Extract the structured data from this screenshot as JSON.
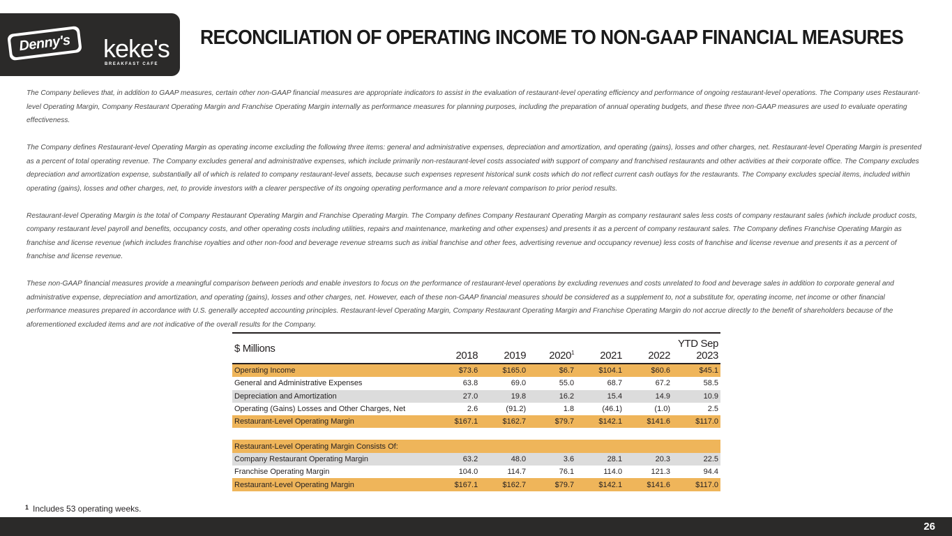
{
  "header": {
    "title": "RECONCILIATION OF OPERATING INCOME TO NON-GAAP FINANCIAL MEASURES",
    "logo_dennys": "Denny's",
    "logo_kekes": "keke's",
    "logo_kekes_sub": "BREAKFAST CAFE"
  },
  "paragraphs": [
    "The Company believes that, in addition to GAAP measures, certain other non-GAAP financial measures are appropriate indicators to assist in the evaluation of restaurant-level operating efficiency and performance of ongoing restaurant-level operations. The Company uses Restaurant-level Operating Margin, Company Restaurant Operating Margin and Franchise Operating Margin internally as performance measures for planning purposes, including the preparation of annual operating budgets, and these three non-GAAP measures are used to evaluate operating effectiveness.",
    "The Company defines Restaurant-level Operating Margin as operating income excluding the following three items: general and administrative expenses, depreciation and amortization, and operating (gains), losses and other charges, net. Restaurant-level Operating Margin is presented as a percent of total operating revenue. The Company excludes general and administrative expenses, which include primarily non-restaurant-level costs associated with support of company and franchised restaurants and other activities at their corporate office. The Company excludes depreciation and amortization expense, substantially all of which is related to company restaurant-level assets, because such expenses represent historical sunk costs which do not reflect current cash outlays for the restaurants. The Company excludes special items, included within operating (gains), losses and other charges, net, to provide investors with a clearer perspective of its ongoing operating performance and a more relevant comparison to prior period results.",
    "Restaurant-level Operating Margin is the total of Company Restaurant Operating Margin and Franchise Operating Margin. The Company defines Company Restaurant Operating Margin as company restaurant sales less costs of company restaurant sales (which include product costs, company restaurant level payroll and benefits, occupancy costs, and other operating costs including utilities, repairs and maintenance, marketing and other expenses) and presents it as a percent of company restaurant sales. The Company defines Franchise Operating Margin as franchise and license revenue (which includes franchise royalties and other non-food and beverage revenue streams such as initial franchise and other fees, advertising revenue and occupancy revenue) less costs of franchise and license revenue and presents it as a percent of franchise and license revenue.",
    "These non-GAAP financial measures provide a meaningful comparison between periods and enable investors to focus on the performance of restaurant-level operations by excluding revenues and costs unrelated to food and beverage sales in addition to corporate general and administrative expense, depreciation and amortization, and operating (gains), losses and other charges, net. However, each of these non-GAAP financial measures should be considered as a supplement to, not a substitute for, operating income, net income or other financial performance measures prepared in accordance with U.S. generally accepted accounting principles. Restaurant-level Operating Margin, Company Restaurant Operating Margin and Franchise Operating Margin do not accrue directly to the benefit of shareholders because of the aforementioned excluded items and are not indicative of the overall results for the Company."
  ],
  "table": {
    "header_label": "$ Millions",
    "columns": [
      "2018",
      "2019",
      "2020",
      "2021",
      "2022"
    ],
    "col_2020_footnote": "1",
    "ytd_line1": "YTD Sep",
    "ytd_line2": "2023",
    "rows": [
      {
        "label": "Operating Income",
        "values": [
          "$73.6",
          "$165.0",
          "$6.7",
          "$104.1",
          "$60.6",
          "$45.1"
        ]
      },
      {
        "label": "General and Administrative Expenses",
        "values": [
          "63.8",
          "69.0",
          "55.0",
          "68.7",
          "67.2",
          "58.5"
        ]
      },
      {
        "label": "Depreciation and Amortization",
        "values": [
          "27.0",
          "19.8",
          "16.2",
          "15.4",
          "14.9",
          "10.9"
        ]
      },
      {
        "label": "Operating (Gains) Losses and Other Charges, Net",
        "values": [
          "2.6",
          "(91.2)",
          "1.8",
          "(46.1)",
          "(1.0)",
          "2.5"
        ]
      },
      {
        "label": "Restaurant-Level Operating Margin",
        "values": [
          "$167.1",
          "$162.7",
          "$79.7",
          "$142.1",
          "$141.6",
          "$117.0"
        ]
      },
      {
        "label": "Restaurant-Level Operating Margin Consists Of:",
        "values": []
      },
      {
        "label": "Company Restaurant Operating Margin",
        "values": [
          "63.2",
          "48.0",
          "3.6",
          "28.1",
          "20.3",
          "22.5"
        ]
      },
      {
        "label": "Franchise Operating Margin",
        "values": [
          "104.0",
          "114.7",
          "76.1",
          "114.0",
          "121.3",
          "94.4"
        ]
      },
      {
        "label": "Restaurant-Level Operating Margin",
        "values": [
          "$167.1",
          "$162.7",
          "$79.7",
          "$142.1",
          "$141.6",
          "$117.0"
        ]
      }
    ]
  },
  "footnote": {
    "mark": "1",
    "text": "Includes 53 operating weeks."
  },
  "page_number": "26",
  "colors": {
    "orange_row": "#efb55a",
    "gray_row": "#dcdcdc",
    "dark_bar": "#2b2a29"
  }
}
